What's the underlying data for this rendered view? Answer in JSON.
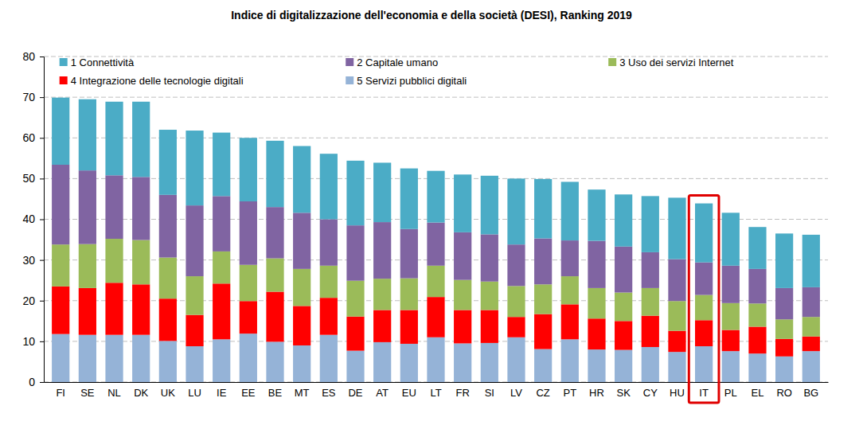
{
  "chart_data": {
    "type": "bar",
    "title": "Indice di digitalizzazione dell'economia e della società (DESI), Ranking 2019",
    "categories": [
      "FI",
      "SE",
      "NL",
      "DK",
      "UK",
      "LU",
      "IE",
      "EE",
      "BE",
      "MT",
      "ES",
      "DE",
      "AT",
      "EU",
      "LT",
      "FR",
      "SI",
      "LV",
      "CZ",
      "PT",
      "HR",
      "SK",
      "CY",
      "HU",
      "IT",
      "PL",
      "EL",
      "RO",
      "BG"
    ],
    "series": [
      {
        "name": "1 Connettività",
        "color": "#4bacc6",
        "values": [
          16.5,
          17.5,
          18.1,
          18.5,
          16.0,
          18.4,
          15.6,
          15.6,
          16.3,
          16.4,
          16.1,
          15.9,
          14.6,
          14.9,
          12.7,
          14.2,
          14.4,
          16.2,
          14.6,
          14.4,
          12.6,
          12.8,
          13.8,
          15.1,
          14.5,
          13.0,
          10.3,
          13.4,
          12.9
        ]
      },
      {
        "name": "2 Capitale umano",
        "color": "#8064a2",
        "values": [
          19.6,
          18.1,
          15.6,
          15.5,
          15.4,
          17.4,
          13.6,
          15.6,
          12.6,
          13.8,
          11.4,
          13.6,
          13.9,
          12.1,
          10.6,
          11.7,
          11.6,
          10.2,
          11.3,
          8.8,
          11.6,
          11.3,
          8.8,
          10.3,
          8.0,
          9.2,
          8.5,
          7.7,
          7.3
        ]
      },
      {
        "name": "3 Uso dei servizi Internet",
        "color": "#9bbb59",
        "values": [
          10.3,
          10.8,
          10.8,
          10.9,
          10.1,
          9.5,
          7.9,
          8.9,
          8.2,
          9.1,
          7.9,
          8.8,
          7.7,
          7.8,
          7.7,
          7.4,
          7.0,
          7.6,
          7.3,
          6.9,
          7.5,
          7.0,
          6.8,
          7.3,
          6.2,
          6.6,
          5.7,
          4.8,
          4.8
        ]
      },
      {
        "name": "4 Integrazione delle tecnologie digitali",
        "color": "#ff0000",
        "values": [
          11.7,
          11.5,
          12.8,
          12.4,
          10.4,
          7.7,
          13.7,
          8.0,
          12.3,
          9.7,
          9.1,
          8.4,
          7.9,
          8.3,
          9.9,
          8.2,
          8.1,
          5.0,
          8.6,
          8.6,
          7.6,
          7.1,
          7.7,
          5.2,
          6.4,
          5.2,
          6.6,
          4.3,
          3.6
        ]
      },
      {
        "name": "5 Servizi pubblici digitali",
        "color": "#95b3d7",
        "values": [
          11.8,
          11.6,
          11.6,
          11.6,
          10.1,
          8.8,
          10.5,
          11.9,
          9.9,
          9.0,
          11.6,
          7.7,
          9.8,
          9.4,
          11.0,
          9.5,
          9.6,
          11.0,
          8.1,
          10.5,
          8.0,
          7.9,
          8.6,
          7.4,
          8.8,
          7.6,
          7.0,
          6.3,
          7.6
        ]
      }
    ],
    "stacked": true,
    "ylim": [
      0,
      80
    ],
    "yticks": [
      0,
      10,
      20,
      30,
      40,
      50,
      60,
      70,
      80
    ],
    "grid": true,
    "legend": "top",
    "highlight": "IT"
  }
}
